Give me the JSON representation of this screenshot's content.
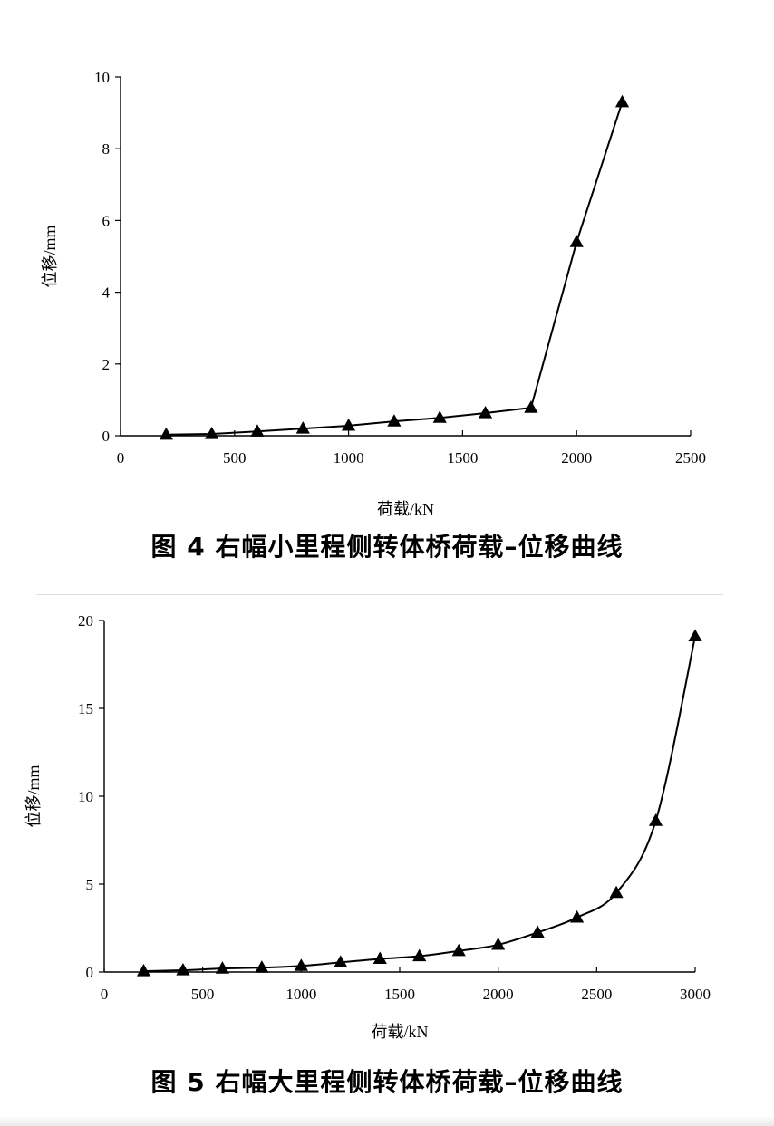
{
  "figures": [
    {
      "caption": "图 4   右幅小里程侧转体桥荷载–位移曲线"
    },
    {
      "caption": "图 5   右幅大里程侧转体桥荷载–位移曲线"
    }
  ],
  "chart_data": [
    {
      "type": "line",
      "marker": "triangle",
      "xlabel": "荷载/kN",
      "ylabel": "位移/mm",
      "xlim": [
        0,
        2500
      ],
      "ylim": [
        0,
        10
      ],
      "xticks": [
        0,
        500,
        1000,
        1500,
        2000,
        2500
      ],
      "yticks": [
        0,
        2,
        4,
        6,
        8,
        10
      ],
      "grid": false,
      "smooth": false,
      "series": [
        {
          "x": [
            200,
            400,
            600,
            800,
            1000,
            1200,
            1400,
            1600,
            1800,
            2000,
            2200
          ],
          "y": [
            0.03,
            0.05,
            0.12,
            0.2,
            0.28,
            0.4,
            0.5,
            0.63,
            0.78,
            5.4,
            9.3
          ]
        }
      ]
    },
    {
      "type": "line",
      "marker": "triangle",
      "xlabel": "荷载/kN",
      "ylabel": "位移/mm",
      "xlim": [
        0,
        3000
      ],
      "ylim": [
        0,
        20
      ],
      "xticks": [
        0,
        500,
        1000,
        1500,
        2000,
        2500,
        3000
      ],
      "yticks": [
        0,
        5,
        10,
        15,
        20
      ],
      "grid": false,
      "smooth": true,
      "series": [
        {
          "x": [
            200,
            400,
            600,
            800,
            1000,
            1200,
            1400,
            1600,
            1800,
            2000,
            2200,
            2400,
            2600,
            2800,
            3000
          ],
          "y": [
            0.05,
            0.1,
            0.2,
            0.25,
            0.35,
            0.55,
            0.75,
            0.9,
            1.2,
            1.55,
            2.25,
            3.1,
            4.5,
            8.6,
            19.1
          ]
        }
      ]
    }
  ]
}
